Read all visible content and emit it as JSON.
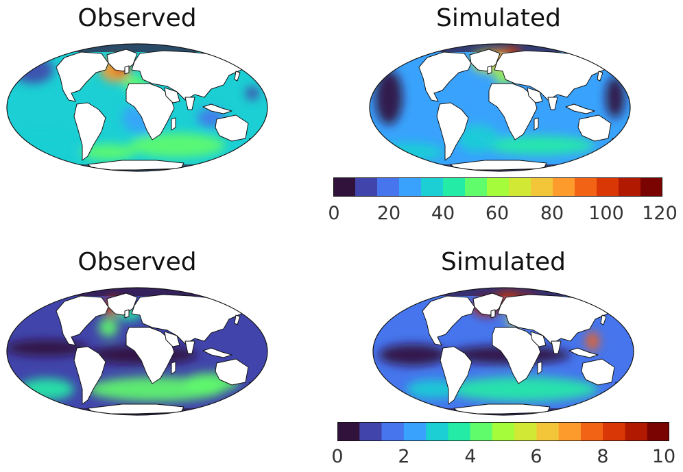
{
  "panels": [
    {
      "title": "Observed"
    },
    {
      "title": "Simulated"
    },
    {
      "title": "Observed"
    },
    {
      "title": "Simulated"
    }
  ],
  "colorbars": [
    {
      "ticks": [
        "0",
        "20",
        "40",
        "60",
        "80",
        "100",
        "120"
      ],
      "range": [
        0,
        120
      ]
    },
    {
      "ticks": [
        "0",
        "2",
        "4",
        "6",
        "8",
        "10"
      ],
      "range": [
        0,
        10
      ]
    }
  ],
  "colormap": [
    "#30123b",
    "#4145ab",
    "#4675ed",
    "#39a2fc",
    "#1bcfd4",
    "#24eca6",
    "#61fc6c",
    "#a4fc3b",
    "#d1e834",
    "#f3c63a",
    "#fe9b2d",
    "#f36315",
    "#d93806",
    "#b11901",
    "#7a0402"
  ],
  "colors": {
    "land": "#ffffff",
    "coast": "#111111",
    "ocean_low": "#30123b"
  }
}
